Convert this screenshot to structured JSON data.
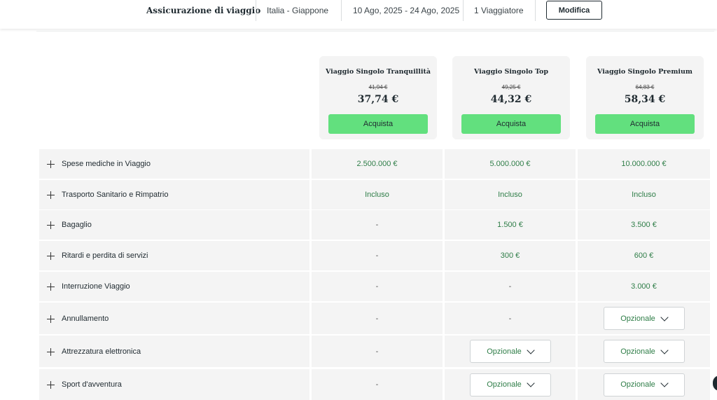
{
  "header": {
    "title": "Assicurazione di viaggio",
    "route": "Italia - Giappone",
    "dates": "10 Ago, 2025 - 24 Ago, 2025",
    "travelers": "1 Viaggiatore",
    "modify_label": "Modifica"
  },
  "plans": [
    {
      "name": "Viaggio Singolo Tranquillità",
      "old_price": "41,94 €",
      "price": "37,74 €",
      "buy_label": "Acquista"
    },
    {
      "name": "Viaggio Singolo Top",
      "old_price": "49,25 €",
      "price": "44,32 €",
      "buy_label": "Acquista"
    },
    {
      "name": "Viaggio Singolo Premium",
      "old_price": "64,83 €",
      "price": "58,34 €",
      "buy_label": "Acquista"
    }
  ],
  "rows": [
    {
      "label": "Spese mediche in Viaggio",
      "values": [
        "2.500.000 €",
        "5.000.000 €",
        "10.000.000 €"
      ]
    },
    {
      "label": "Trasporto Sanitario e Rimpatrio",
      "values": [
        "Incluso",
        "Incluso",
        "Incluso"
      ]
    },
    {
      "label": "Bagaglio",
      "values": [
        "-",
        "1.500 €",
        "3.500 €"
      ]
    },
    {
      "label": "Ritardi e perdita di servizi",
      "values": [
        "-",
        "300 €",
        "600 €"
      ]
    },
    {
      "label": "Interruzione Viaggio",
      "values": [
        "-",
        "-",
        "3.000 €"
      ]
    },
    {
      "label": "Annullamento",
      "values": [
        "-",
        "-",
        "Opzionale"
      ]
    },
    {
      "label": "Attrezzatura elettronica",
      "values": [
        "-",
        "Opzionale",
        "Opzionale"
      ]
    },
    {
      "label": "Sport d'avventura",
      "values": [
        "-",
        "Opzionale",
        "Opzionale"
      ]
    }
  ],
  "colors": {
    "accent": "#62e07e",
    "value_green": "#2e7d47",
    "row_bg": "#f4f4f4"
  }
}
